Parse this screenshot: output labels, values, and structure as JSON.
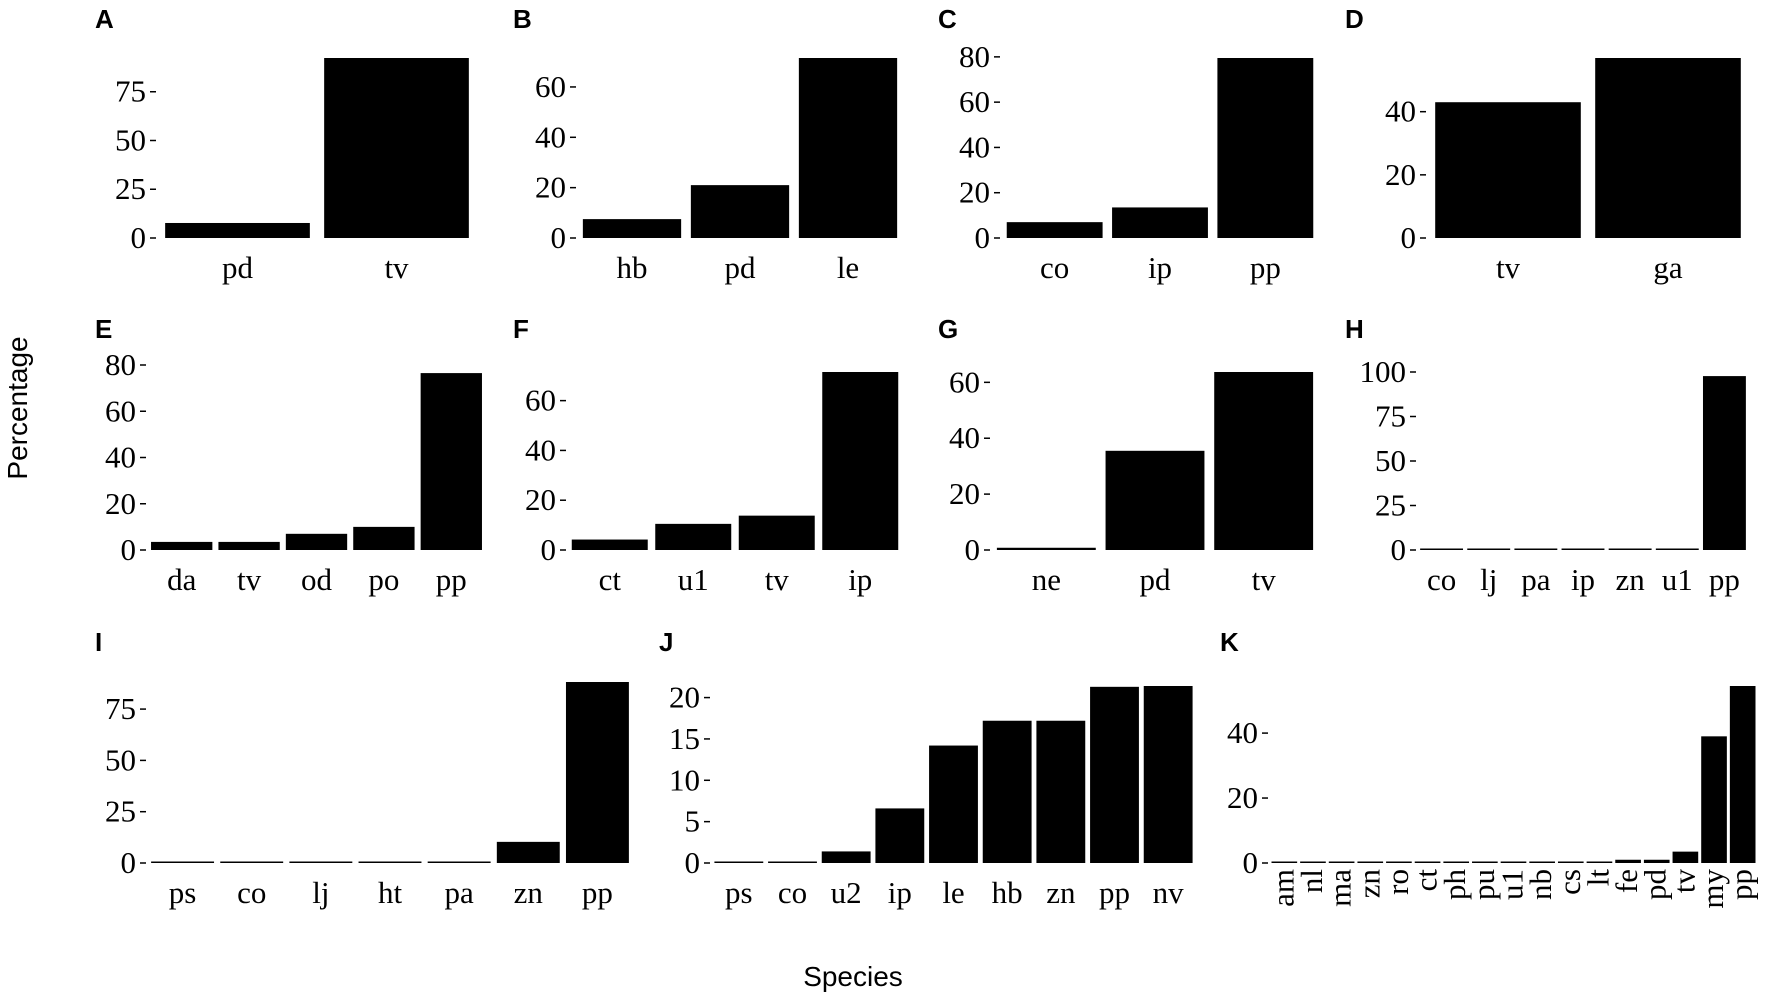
{
  "figure": {
    "ylabel": "Percentage",
    "xlabel": "Species"
  },
  "chart_data": [
    {
      "panel": "A",
      "type": "bar",
      "categories": [
        "pd",
        "tv"
      ],
      "values": [
        7.7,
        92.3
      ],
      "yticks": [
        0,
        25,
        50,
        75
      ],
      "ylim": [
        0,
        92.3
      ]
    },
    {
      "panel": "B",
      "type": "bar",
      "categories": [
        "hb",
        "pd",
        "le"
      ],
      "values": [
        7.5,
        21,
        71.5
      ],
      "yticks": [
        0,
        20,
        40,
        60
      ],
      "ylim": [
        0,
        71.5
      ]
    },
    {
      "panel": "C",
      "type": "bar",
      "categories": [
        "co",
        "ip",
        "pp"
      ],
      "values": [
        7,
        13.5,
        79.5
      ],
      "yticks": [
        0,
        20,
        40,
        60,
        80
      ],
      "ylim": [
        0,
        79.5
      ]
    },
    {
      "panel": "D",
      "type": "bar",
      "categories": [
        "tv",
        "ga"
      ],
      "values": [
        43,
        57
      ],
      "yticks": [
        0,
        20,
        40
      ],
      "ylim": [
        0,
        57
      ]
    },
    {
      "panel": "E",
      "type": "bar",
      "categories": [
        "da",
        "tv",
        "od",
        "po",
        "pp"
      ],
      "values": [
        3.5,
        3.5,
        7,
        10,
        76.5
      ],
      "yticks": [
        0,
        20,
        40,
        60,
        80
      ],
      "ylim": [
        0,
        80
      ]
    },
    {
      "panel": "F",
      "type": "bar",
      "categories": [
        "ct",
        "u1",
        "tv",
        "ip"
      ],
      "values": [
        4.2,
        10.5,
        13.8,
        71.5
      ],
      "yticks": [
        0,
        20,
        40,
        60
      ],
      "ylim": [
        0,
        71.5
      ]
    },
    {
      "panel": "G",
      "type": "bar",
      "categories": [
        "ne",
        "pd",
        "tv"
      ],
      "values": [
        0.8,
        35.5,
        63.7
      ],
      "yticks": [
        0,
        20,
        40,
        60
      ],
      "ylim": [
        0,
        63.7
      ]
    },
    {
      "panel": "H",
      "type": "bar",
      "categories": [
        "co",
        "lj",
        "pa",
        "ip",
        "zn",
        "u1",
        "pp"
      ],
      "values": [
        0.3,
        0.3,
        0.3,
        0.3,
        0.3,
        0.8,
        97.7
      ],
      "yticks": [
        0,
        25,
        50,
        75,
        100
      ],
      "ylim": [
        0,
        100
      ]
    },
    {
      "panel": "I",
      "type": "bar",
      "categories": [
        "ps",
        "co",
        "lj",
        "ht",
        "pa",
        "zn",
        "pp"
      ],
      "values": [
        0.3,
        0.3,
        0.3,
        0.3,
        0.3,
        10.3,
        88.2
      ],
      "yticks": [
        0,
        25,
        50,
        75
      ],
      "ylim": [
        0,
        88.2
      ]
    },
    {
      "panel": "J",
      "type": "bar",
      "categories": [
        "ps",
        "co",
        "u2",
        "ip",
        "le",
        "hb",
        "zn",
        "pp",
        "nv"
      ],
      "values": [
        0.1,
        0.1,
        1.4,
        6.6,
        14.2,
        17.2,
        17.2,
        21.3,
        21.4
      ],
      "yticks": [
        0,
        5,
        10,
        15,
        20
      ],
      "ylim": [
        0,
        21.4
      ]
    },
    {
      "panel": "K",
      "type": "bar",
      "categories": [
        "am",
        "nl",
        "ma",
        "zn",
        "ro",
        "ct",
        "ph",
        "pu",
        "u1",
        "nb",
        "cs",
        "lt",
        "fe",
        "pd",
        "tv",
        "my",
        "pp"
      ],
      "values": [
        0.2,
        0.2,
        0.2,
        0.2,
        0.2,
        0.2,
        0.2,
        0.2,
        0.2,
        0.2,
        0.2,
        0.2,
        1,
        1,
        3.5,
        39,
        54.5
      ],
      "yticks": [
        0,
        20,
        40
      ],
      "ylim": [
        0,
        54.5
      ],
      "rotate_labels": true
    }
  ]
}
